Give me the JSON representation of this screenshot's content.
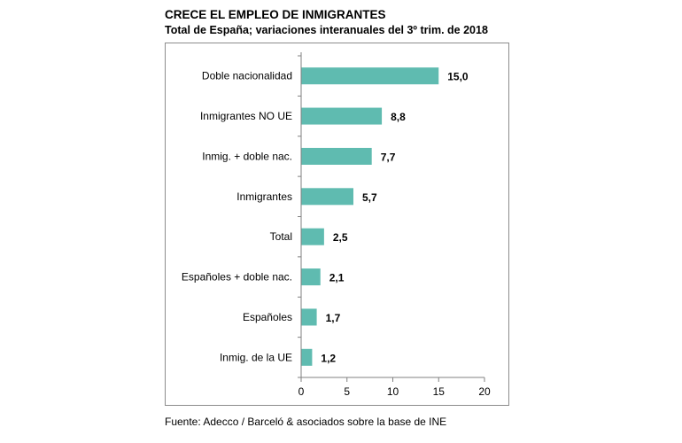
{
  "header": {
    "title": "CRECE EL EMPLEO DE INMIGRANTES",
    "subtitle": "Total de España; variaciones interanuales del 3º trim. de 2018"
  },
  "footer": {
    "source": "Fuente: Adecco / Barceló & asociados sobre la base de INE"
  },
  "colors": {
    "bar": "#5fbbb0",
    "axis": "#808080",
    "frame": "#8c8c8c"
  },
  "chart_data": {
    "type": "bar",
    "orientation": "horizontal",
    "categories": [
      "Doble nacionalidad",
      "Inmigrantes NO UE",
      "Inmig. + doble nac.",
      "Inmigrantes",
      "Total",
      "Españoles + doble nac.",
      "Españoles",
      "Inmig. de la UE"
    ],
    "values": [
      15.0,
      8.8,
      7.7,
      5.7,
      2.5,
      2.1,
      1.7,
      1.2
    ],
    "value_labels": [
      "15,0",
      "8,8",
      "7,7",
      "5,7",
      "2,5",
      "2,1",
      "1,7",
      "1,2"
    ],
    "xlim": [
      0,
      20
    ],
    "xticks": [
      0,
      5,
      10,
      15,
      20
    ],
    "xtick_labels": [
      "0",
      "5",
      "10",
      "15",
      "20"
    ],
    "grid": false,
    "legend": "none"
  }
}
